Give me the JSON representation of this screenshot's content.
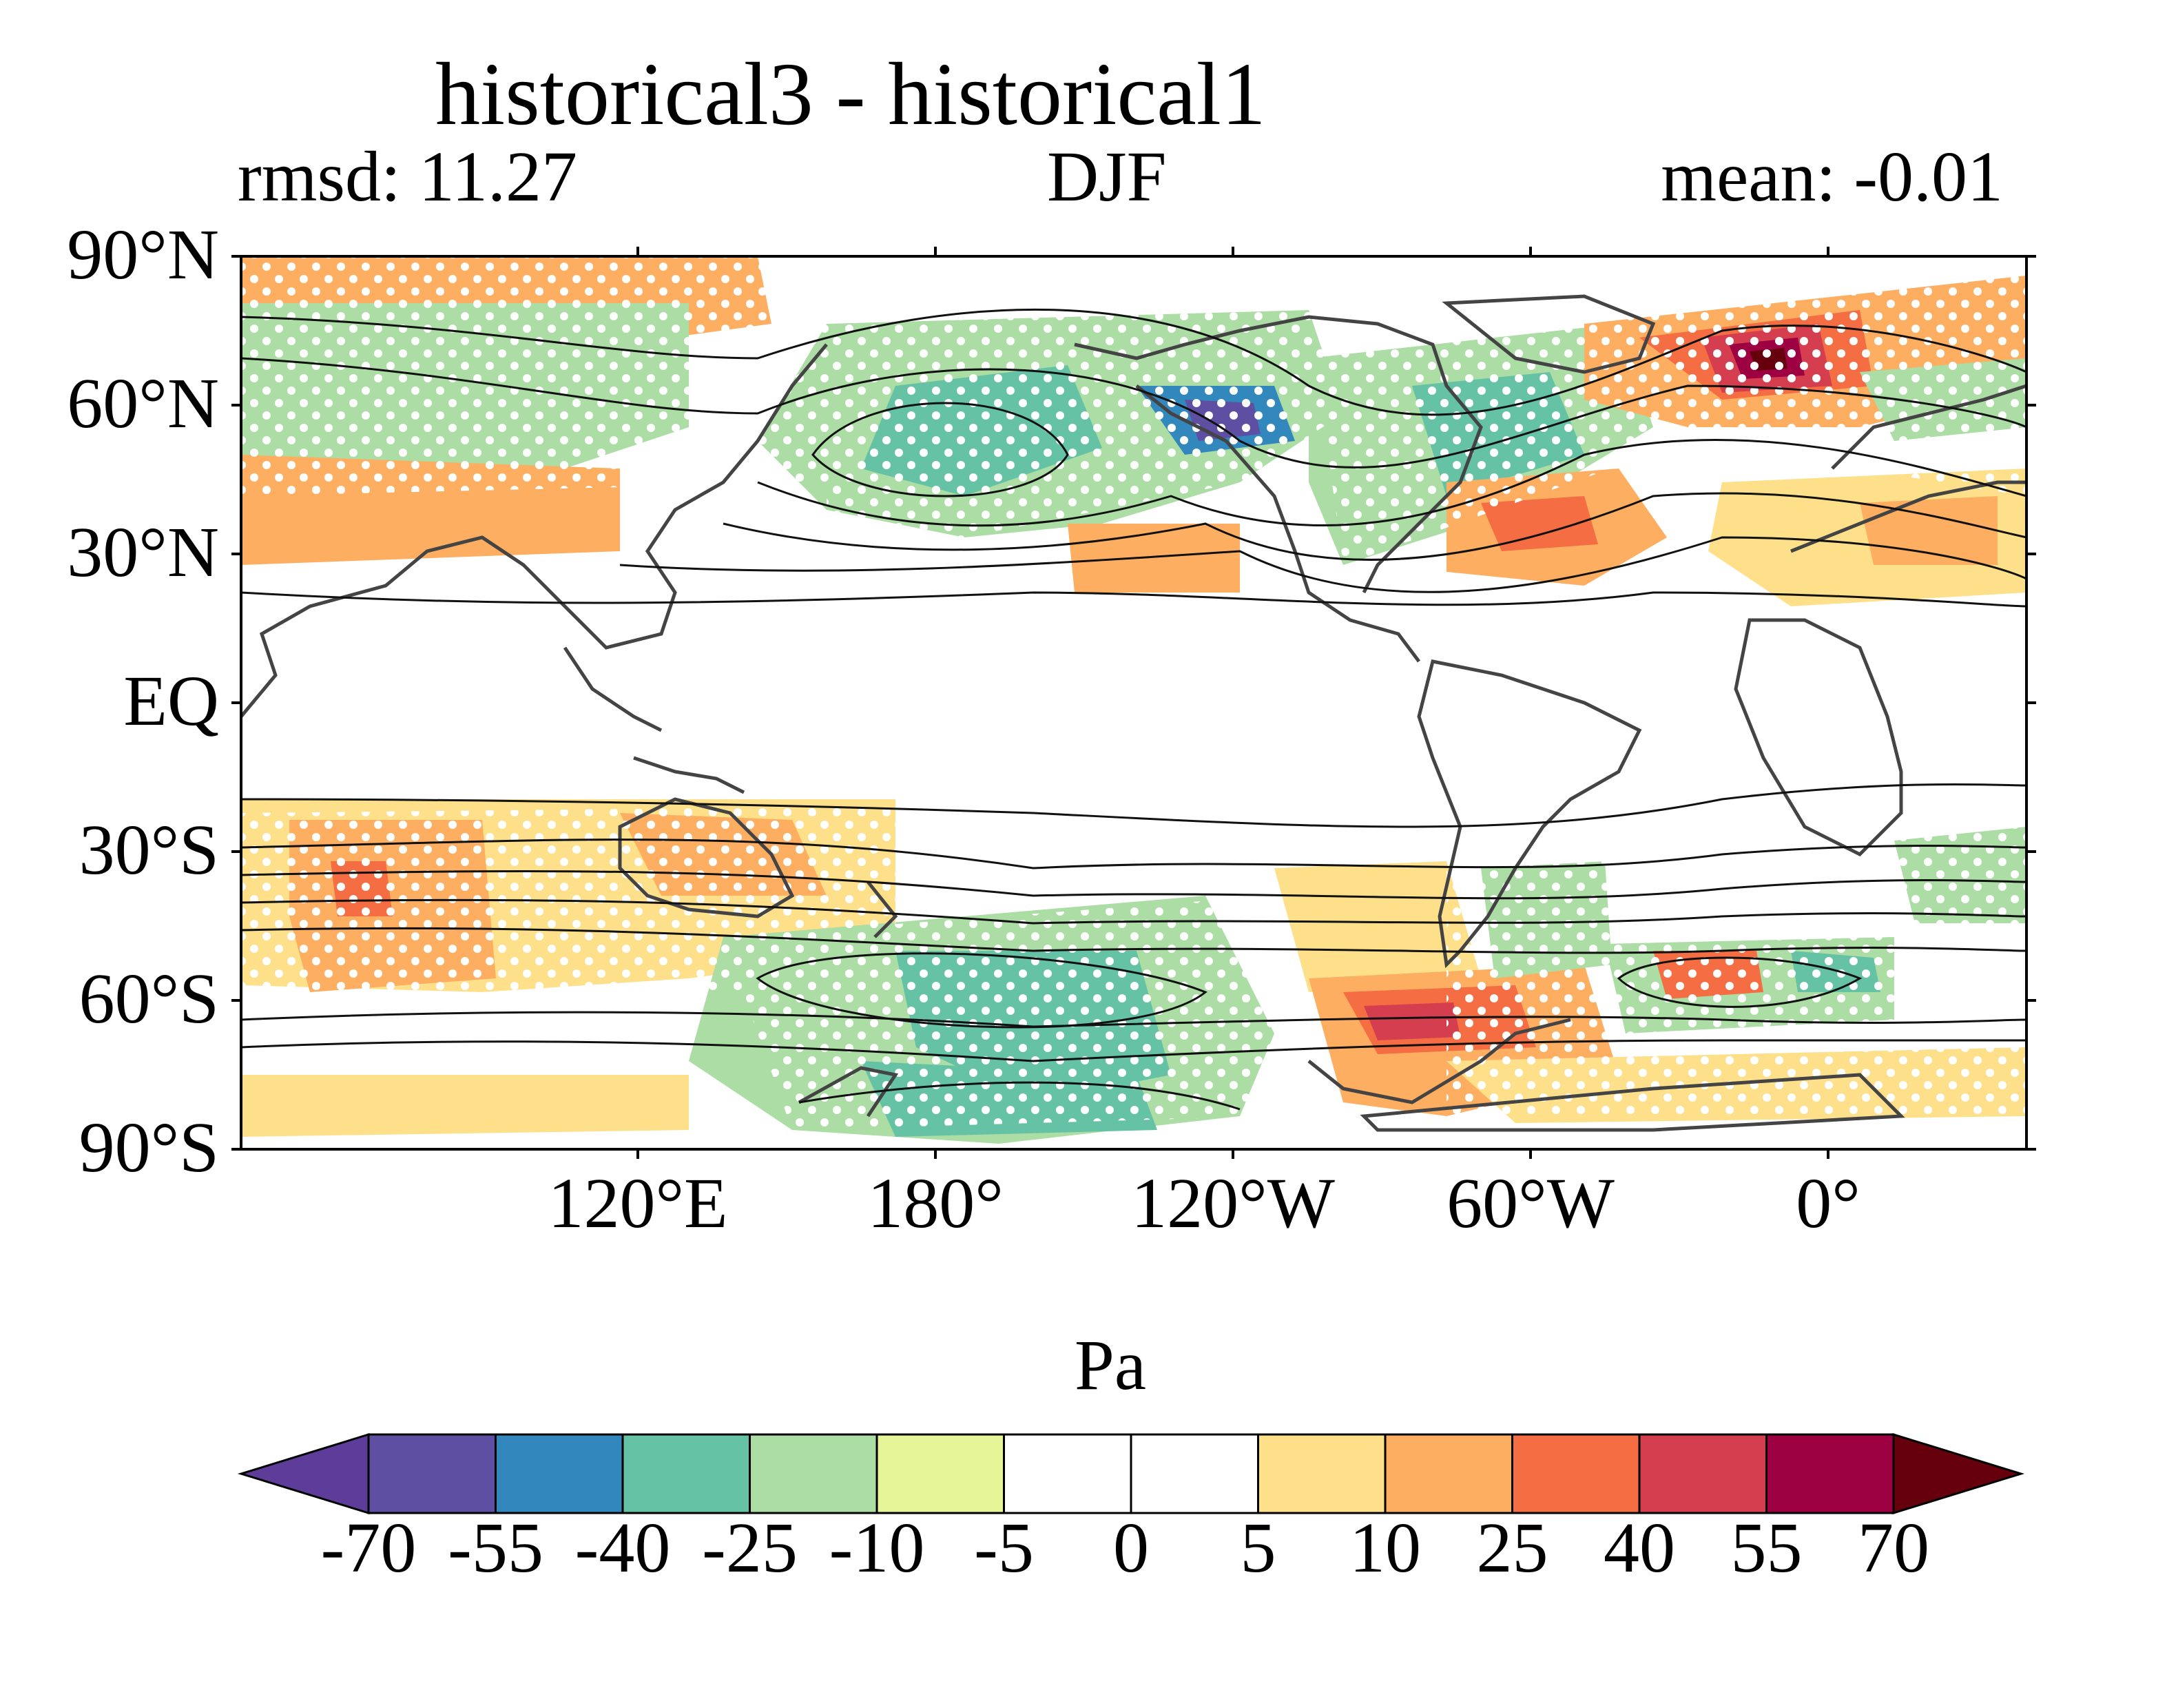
{
  "title": "historical3 - historical1",
  "left_subtitle": "rmsd: 11.27",
  "center_subtitle": "DJF",
  "right_subtitle": "mean: -0.01",
  "lat_ticks": [
    "90°N",
    "60°N",
    "30°N",
    "EQ",
    "30°S",
    "60°S",
    "90°S"
  ],
  "lon_ticks": [
    "120°E",
    "180°",
    "120°W",
    "60°W",
    "0°"
  ],
  "colorbar": {
    "units": "Pa",
    "labels": [
      "-70",
      "-55",
      "-40",
      "-25",
      "-10",
      "-5",
      "0",
      "5",
      "10",
      "25",
      "40",
      "55",
      "70"
    ],
    "colors": [
      "#5e3c99",
      "#5e4fa2",
      "#3288bd",
      "#66c2a5",
      "#abdda4",
      "#e6f598",
      "#ffffff",
      "#ffffff",
      "#fee08b",
      "#fdae61",
      "#f46d43",
      "#d53e4f",
      "#9e0142",
      "#67000d"
    ]
  },
  "map": {
    "lon_range": [
      40,
      400
    ],
    "lat_range": [
      -90,
      90
    ],
    "stippling": "white dots mark significant differences"
  }
}
